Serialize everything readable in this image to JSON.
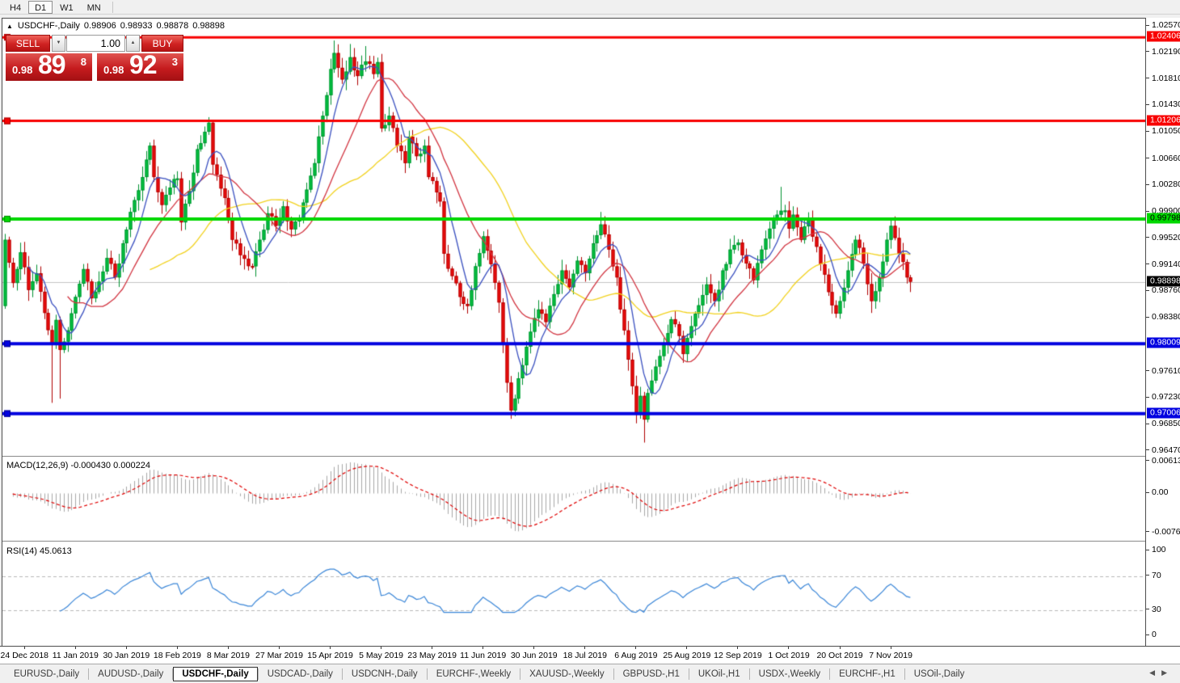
{
  "toolbar": {
    "timeframes": [
      {
        "label": "H4",
        "active": false
      },
      {
        "label": "D1",
        "active": true
      },
      {
        "label": "W1",
        "active": false
      },
      {
        "label": "MN",
        "active": false
      }
    ]
  },
  "chart": {
    "symbol_line": {
      "collapse_icon": "▲",
      "title": "USDCHF-,Daily",
      "open": "0.98906",
      "high": "0.98933",
      "low": "0.98878",
      "close": "0.98898"
    },
    "trade_panel": {
      "sell_label": "SELL",
      "buy_label": "BUY",
      "volume": "1.00",
      "spin_down_icon": "▼",
      "spin_up_icon": "▲",
      "sell_price_small": "0.98",
      "sell_price_big": "89",
      "sell_price_sup": "8",
      "buy_price_small": "0.98",
      "buy_price_big": "92",
      "buy_price_sup": "3"
    },
    "axis_labels": [
      "1.02570",
      "1.02190",
      "1.01810",
      "1.01430",
      "1.01050",
      "1.00660",
      "1.00280",
      "0.99900",
      "0.99520",
      "0.99140",
      "0.98760",
      "0.98380",
      "0.97610",
      "0.97230",
      "0.96850",
      "0.96470"
    ],
    "hlines": [
      {
        "price": 1.02406,
        "label": "1.02406",
        "color": "#f80000",
        "border": "#a00000",
        "width": 3,
        "badge_bg": "#f80000",
        "badge_fg": "#ffffff"
      },
      {
        "price": 1.01206,
        "label": "1.01206",
        "color": "#f80000",
        "border": "#a00000",
        "width": 3,
        "badge_bg": "#f80000",
        "badge_fg": "#ffffff"
      },
      {
        "price": 0.99798,
        "label": "0.99798",
        "color": "#00d800",
        "border": "#008a00",
        "width": 4,
        "badge_bg": "#00d800",
        "badge_fg": "#000000"
      },
      {
        "price": 0.98009,
        "label": "0.98009",
        "color": "#0202e0",
        "border": "#000090",
        "width": 4,
        "badge_bg": "#0202e0",
        "badge_fg": "#ffffff"
      },
      {
        "price": 0.97006,
        "label": "0.97006",
        "color": "#0202e0",
        "border": "#000090",
        "width": 4,
        "badge_bg": "#0202e0",
        "badge_fg": "#ffffff"
      }
    ],
    "current_price": {
      "price": 0.98898,
      "label": "0.98898",
      "badge_bg": "#000000",
      "badge_fg": "#ffffff",
      "line_color": "#c4c4c4"
    }
  },
  "macd": {
    "header": "MACD(12,26,9) -0.000430 0.000224",
    "axis": [
      {
        "v": 0.00613,
        "label": "0.00613"
      },
      {
        "v": 0,
        "label": "0.00"
      },
      {
        "v": -0.007612,
        "label": "-0.007612"
      }
    ],
    "hist_color": "#a8a8a8",
    "signal_color": "#e00000",
    "fast": 12,
    "slow": 26,
    "signal": 9
  },
  "rsi": {
    "header": "RSI(14) 45.0613",
    "axis": [
      {
        "v": 100,
        "label": "100"
      },
      {
        "v": 70,
        "label": "70"
      },
      {
        "v": 30,
        "label": "30"
      },
      {
        "v": 0,
        "label": "0"
      }
    ],
    "levels": [
      70,
      30
    ],
    "line_color": "#3a86d8",
    "level_color": "#b8b8b8",
    "period": 14
  },
  "dates": [
    "24 Dec 2018",
    "11 Jan 2019",
    "30 Jan 2019",
    "18 Feb 2019",
    "8 Mar 2019",
    "27 Mar 2019",
    "15 Apr 2019",
    "5 May 2019",
    "23 May 2019",
    "11 Jun 2019",
    "30 Jun 2019",
    "18 Jul 2019",
    "6 Aug 2019",
    "25 Aug 2019",
    "12 Sep 2019",
    "1 Oct 2019",
    "20 Oct 2019",
    "7 Nov 2019"
  ],
  "tabs": [
    {
      "label": "EURUSD-,Daily",
      "active": false
    },
    {
      "label": "AUDUSD-,Daily",
      "active": false
    },
    {
      "label": "USDCHF-,Daily",
      "active": true
    },
    {
      "label": "USDCAD-,Daily",
      "active": false
    },
    {
      "label": "USDCNH-,Daily",
      "active": false
    },
    {
      "label": "EURCHF-,Weekly",
      "active": false
    },
    {
      "label": "XAUUSD-,Weekly",
      "active": false
    },
    {
      "label": "GBPUSD-,H1",
      "active": false
    },
    {
      "label": "UKOil-,H1",
      "active": false
    },
    {
      "label": "USDX-,Weekly",
      "active": false
    },
    {
      "label": "EURCHF-,H1",
      "active": false
    },
    {
      "label": "USOil-,Daily",
      "active": false
    }
  ],
  "tab_nav": {
    "left_icon": "◀",
    "right_icon": "▶"
  },
  "chart_data": {
    "type": "candlestick",
    "symbol": "USDCHF",
    "timeframe": "Daily",
    "candle_count": 232,
    "bull_color": "#00c53f",
    "bull_border": "#009130",
    "bear_color": "#f20c0c",
    "bear_border": "#b00000",
    "ma": [
      {
        "period": 38,
        "color": "#f2d21e"
      },
      {
        "period": 17,
        "color": "#d23440"
      },
      {
        "period": 7,
        "color": "#3a50c0"
      }
    ],
    "close_waypoints": [
      [
        0,
        0.995
      ],
      [
        2,
        0.9888
      ],
      [
        4,
        0.9932
      ],
      [
        6,
        0.9878
      ],
      [
        8,
        0.9902
      ],
      [
        10,
        0.9845
      ],
      [
        12,
        0.98
      ],
      [
        13,
        0.9835
      ],
      [
        14,
        0.9792
      ],
      [
        16,
        0.982
      ],
      [
        18,
        0.9868
      ],
      [
        20,
        0.9908
      ],
      [
        22,
        0.9866
      ],
      [
        24,
        0.989
      ],
      [
        26,
        0.9924
      ],
      [
        28,
        0.9896
      ],
      [
        30,
        0.9945
      ],
      [
        32,
        0.999
      ],
      [
        35,
        1.004
      ],
      [
        37,
        1.0085
      ],
      [
        38,
        1.004
      ],
      [
        40,
        1.0
      ],
      [
        42,
        1.0025
      ],
      [
        44,
        1.0038
      ],
      [
        45,
        0.9975
      ],
      [
        47,
        1.002
      ],
      [
        49,
        1.008
      ],
      [
        51,
        1.0105
      ],
      [
        52,
        1.0118
      ],
      [
        53,
        1.0058
      ],
      [
        56,
        1.001
      ],
      [
        58,
        0.995
      ],
      [
        60,
        0.9928
      ],
      [
        63,
        0.9912
      ],
      [
        65,
        0.995
      ],
      [
        67,
        0.9988
      ],
      [
        69,
        0.997
      ],
      [
        71,
        0.9998
      ],
      [
        73,
        0.9965
      ],
      [
        75,
        0.998
      ],
      [
        77,
        1.0022
      ],
      [
        79,
        1.006
      ],
      [
        81,
        1.0128
      ],
      [
        83,
        1.0195
      ],
      [
        84,
        1.0218
      ],
      [
        86,
        1.018
      ],
      [
        88,
        1.0212
      ],
      [
        90,
        1.0185
      ],
      [
        92,
        1.0206
      ],
      [
        94,
        1.0188
      ],
      [
        95,
        1.0205
      ],
      [
        96,
        1.011
      ],
      [
        98,
        1.0128
      ],
      [
        100,
        1.0085
      ],
      [
        102,
        1.006
      ],
      [
        103,
        1.0098
      ],
      [
        105,
        1.007
      ],
      [
        107,
        1.0085
      ],
      [
        108,
        1.004
      ],
      [
        110,
        1.0018
      ],
      [
        111,
        1.0005
      ],
      [
        112,
        0.993
      ],
      [
        114,
        0.9898
      ],
      [
        116,
        0.9868
      ],
      [
        118,
        0.9855
      ],
      [
        120,
        0.9912
      ],
      [
        122,
        0.9955
      ],
      [
        124,
        0.9915
      ],
      [
        126,
        0.986
      ],
      [
        127,
        0.98
      ],
      [
        128,
        0.9745
      ],
      [
        129,
        0.9705
      ],
      [
        130,
        0.9722
      ],
      [
        132,
        0.977
      ],
      [
        134,
        0.9818
      ],
      [
        136,
        0.985
      ],
      [
        138,
        0.9832
      ],
      [
        140,
        0.9872
      ],
      [
        142,
        0.9906
      ],
      [
        144,
        0.9882
      ],
      [
        146,
        0.992
      ],
      [
        148,
        0.9902
      ],
      [
        150,
        0.9945
      ],
      [
        152,
        0.9972
      ],
      [
        154,
        0.9936
      ],
      [
        156,
        0.9896
      ],
      [
        157,
        0.985
      ],
      [
        158,
        0.982
      ],
      [
        159,
        0.9778
      ],
      [
        160,
        0.974
      ],
      [
        161,
        0.97
      ],
      [
        162,
        0.9726
      ],
      [
        163,
        0.9692
      ],
      [
        164,
        0.973
      ],
      [
        166,
        0.9768
      ],
      [
        168,
        0.98
      ],
      [
        170,
        0.9836
      ],
      [
        172,
        0.9812
      ],
      [
        173,
        0.9786
      ],
      [
        175,
        0.9826
      ],
      [
        177,
        0.9856
      ],
      [
        179,
        0.9886
      ],
      [
        181,
        0.9862
      ],
      [
        183,
        0.9906
      ],
      [
        185,
        0.9936
      ],
      [
        187,
        0.9946
      ],
      [
        189,
        0.9916
      ],
      [
        191,
        0.9892
      ],
      [
        193,
        0.9936
      ],
      [
        195,
        0.9966
      ],
      [
        197,
        0.9986
      ],
      [
        199,
        0.9992
      ],
      [
        200,
        0.9966
      ],
      [
        201,
        0.9986
      ],
      [
        203,
        0.995
      ],
      [
        205,
        0.998
      ],
      [
        207,
        0.994
      ],
      [
        209,
        0.99
      ],
      [
        211,
        0.9856
      ],
      [
        212,
        0.9844
      ],
      [
        213,
        0.9862
      ],
      [
        215,
        0.9906
      ],
      [
        217,
        0.995
      ],
      [
        219,
        0.9916
      ],
      [
        221,
        0.9862
      ],
      [
        223,
        0.9896
      ],
      [
        225,
        0.995
      ],
      [
        226,
        0.997
      ],
      [
        228,
        0.993
      ],
      [
        230,
        0.9896
      ],
      [
        231,
        0.98898
      ]
    ],
    "wick_lows": {
      "12": 0.9716,
      "14": 0.9722,
      "129": 0.9693,
      "163": 0.9659,
      "212": 0.9838,
      "221": 0.9845
    },
    "wick_highs": {
      "52": 1.0126,
      "84": 1.0236,
      "88": 1.0231,
      "92": 1.0228,
      "152": 0.999,
      "198": 1.0026,
      "226": 0.9979
    },
    "price_range": {
      "top": 1.0257,
      "bottom": 0.9647
    }
  }
}
